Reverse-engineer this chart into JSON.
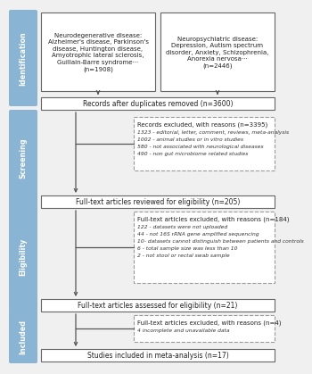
{
  "bg_color": "#f0f0f0",
  "sidebar_color": "#8ab4d4",
  "box_bg": "#ffffff",
  "box_edge": "#666666",
  "dashed_edge": "#999999",
  "arrow_color": "#555555",
  "top_left_text": "Neurodegenerative disease:\nAlzheimer's disease, Parkinson's\ndisease, Huntington disease,\nAmyotrophic lateral sclerosis,\nGuillain-Barre syndrome···\n(n=1908)",
  "top_right_text": "Neuropsychiatric disease:\nDepression, Autism spectrum\ndisorder, Anxiety, Schizophrenia,\nAnorexia nervosa···\n(n=2446)",
  "records_text": "Records after duplicates removed (n=3600)",
  "excl1_title": "Records excluded, with reasons (n=3395)",
  "excl1_items": [
    "1323 - editorial, letter, comment, reviews, meta-analysis",
    "1002 - animal studies or in vitro studies",
    "580 - not associated with neurological diseases",
    "490 - non gut microbiome related studies"
  ],
  "eligibility_text": "Full-text articles reviewed for eligibility (n=205)",
  "excl2_title": "Full-text articles excluded, with reasons (n=184)",
  "excl2_items": [
    "122 - datasets were not uploaded",
    "44 - not 16S rRNA gene amplified sequencing",
    "10- datasets cannot distinguish between patients and controls",
    "6 - total sample size was less than 10",
    "2 - not stool or rectal swab sample"
  ],
  "assessed_text": "Full-text articles assessed for eligibility (n=21)",
  "excl3_title": "Full-text articles excluded, with reasons (n=4)",
  "excl3_items": [
    "4 incomplete and unavailable data"
  ],
  "included_text": "Studies included in meta-analysis (n=17)",
  "sidebar_labels": [
    "Identification",
    "Screening",
    "Eligibility",
    "Included"
  ]
}
